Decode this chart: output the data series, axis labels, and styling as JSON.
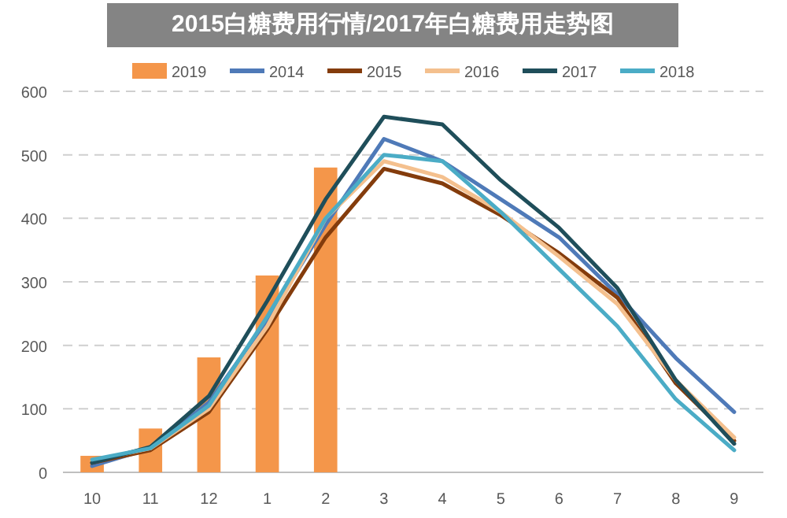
{
  "chart_data": {
    "type": "bar",
    "title": "2015白糖费用行情/2017年白糖费用走势图",
    "categories": [
      "10",
      "11",
      "12",
      "1",
      "2",
      "3",
      "4",
      "5",
      "6",
      "7",
      "8",
      "9"
    ],
    "ylim": [
      0,
      600
    ],
    "yticks": [
      0,
      100,
      200,
      300,
      400,
      500,
      600
    ],
    "grid": "y",
    "legend": "top",
    "marker": "none",
    "line_style": "solid",
    "series": [
      {
        "name": "2019",
        "color": "#f4964a",
        "values": [
          26,
          69,
          181,
          310,
          480,
          null,
          null,
          null,
          null,
          null,
          null,
          null
        ]
      },
      {
        "name": "2014",
        "type": "line",
        "color": "#4f7ab8",
        "values": [
          10,
          38,
          110,
          240,
          390,
          525,
          490,
          430,
          370,
          280,
          180,
          95
        ]
      },
      {
        "name": "2015",
        "type": "line",
        "color": "#843c0c",
        "values": [
          15,
          35,
          95,
          225,
          370,
          478,
          455,
          405,
          345,
          275,
          140,
          50
        ]
      },
      {
        "name": "2016",
        "type": "line",
        "color": "#f4c08e",
        "values": [
          18,
          38,
          100,
          230,
          400,
          490,
          465,
          410,
          340,
          265,
          145,
          55
        ]
      },
      {
        "name": "2017",
        "type": "line",
        "color": "#1f4e5a",
        "values": [
          15,
          40,
          120,
          270,
          430,
          560,
          548,
          460,
          385,
          290,
          145,
          45
        ]
      },
      {
        "name": "2018",
        "type": "line",
        "color": "#4bacc6",
        "values": [
          20,
          38,
          105,
          245,
          400,
          500,
          490,
          410,
          320,
          230,
          115,
          35
        ]
      }
    ]
  }
}
